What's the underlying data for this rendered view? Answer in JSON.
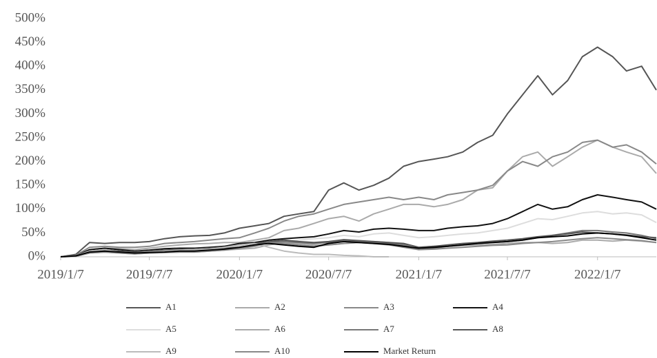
{
  "chart_data": {
    "type": "line",
    "x": [
      "2019/1/7",
      "2019/2/7",
      "2019/3/7",
      "2019/4/7",
      "2019/5/7",
      "2019/6/7",
      "2019/7/7",
      "2019/8/7",
      "2019/9/7",
      "2019/10/7",
      "2019/11/7",
      "2019/12/7",
      "2020/1/7",
      "2020/2/7",
      "2020/3/7",
      "2020/4/7",
      "2020/5/7",
      "2020/6/7",
      "2020/7/7",
      "2020/8/7",
      "2020/9/7",
      "2020/10/7",
      "2020/11/7",
      "2020/12/7",
      "2021/1/7",
      "2021/2/7",
      "2021/3/7",
      "2021/4/7",
      "2021/5/7",
      "2021/6/7",
      "2021/7/7",
      "2021/8/7",
      "2021/9/7",
      "2021/10/7",
      "2021/11/7",
      "2021/12/7",
      "2022/1/7",
      "2022/2/7",
      "2022/3/7",
      "2022/4/7",
      "2022/5/7"
    ],
    "xlim": [
      "2019/1/7",
      "2022/5/7"
    ],
    "xticks": [
      "2019/1/7",
      "2019/7/7",
      "2020/1/7",
      "2020/7/7",
      "2021/1/7",
      "2021/7/7",
      "2022/1/7"
    ],
    "ylim": [
      0,
      500
    ],
    "yticks": [
      {
        "value": 0,
        "label": "0%"
      },
      {
        "value": 50,
        "label": "50%"
      },
      {
        "value": 100,
        "label": "100%"
      },
      {
        "value": 150,
        "label": "150%"
      },
      {
        "value": 200,
        "label": "200%"
      },
      {
        "value": 250,
        "label": "250%"
      },
      {
        "value": 300,
        "label": "300%"
      },
      {
        "value": 350,
        "label": "350%"
      },
      {
        "value": 400,
        "label": "400%"
      },
      {
        "value": 450,
        "label": "450%"
      },
      {
        "value": 500,
        "label": "500%"
      }
    ],
    "series": [
      {
        "name": "A1",
        "color": "#555555",
        "values": [
          0,
          5,
          30,
          28,
          30,
          30,
          32,
          38,
          42,
          44,
          45,
          50,
          60,
          65,
          70,
          85,
          90,
          95,
          140,
          155,
          140,
          150,
          165,
          190,
          200,
          205,
          210,
          220,
          240,
          255,
          300,
          340,
          380,
          340,
          370,
          420,
          440,
          420,
          390,
          400,
          350
        ]
      },
      {
        "name": "A2",
        "color": "#aaaaaa",
        "values": [
          0,
          3,
          15,
          18,
          17,
          15,
          18,
          22,
          25,
          27,
          28,
          30,
          30,
          35,
          40,
          55,
          60,
          70,
          80,
          85,
          75,
          90,
          100,
          110,
          110,
          105,
          110,
          120,
          140,
          145,
          180,
          210,
          220,
          190,
          210,
          230,
          245,
          230,
          220,
          210,
          175
        ]
      },
      {
        "name": "A3",
        "color": "#888888",
        "values": [
          0,
          3,
          20,
          22,
          20,
          20,
          22,
          28,
          30,
          32,
          35,
          38,
          40,
          50,
          60,
          75,
          85,
          90,
          100,
          110,
          115,
          120,
          125,
          120,
          125,
          120,
          130,
          135,
          140,
          150,
          180,
          200,
          190,
          210,
          220,
          240,
          245,
          230,
          235,
          220,
          195
        ]
      },
      {
        "name": "A4",
        "color": "#111111",
        "values": [
          0,
          2,
          15,
          18,
          15,
          12,
          14,
          17,
          18,
          18,
          20,
          22,
          28,
          30,
          35,
          38,
          40,
          42,
          48,
          55,
          52,
          58,
          60,
          58,
          55,
          55,
          60,
          63,
          65,
          70,
          80,
          95,
          110,
          100,
          105,
          120,
          130,
          125,
          120,
          115,
          100
        ]
      },
      {
        "name": "A5",
        "color": "#dddddd",
        "values": [
          0,
          2,
          12,
          15,
          12,
          10,
          12,
          14,
          15,
          16,
          18,
          20,
          22,
          25,
          30,
          32,
          35,
          38,
          40,
          45,
          42,
          48,
          50,
          45,
          40,
          42,
          45,
          48,
          50,
          55,
          60,
          70,
          80,
          78,
          85,
          92,
          95,
          90,
          92,
          88,
          72
        ]
      },
      {
        "name": "A6",
        "color": "#aaaaaa",
        "values": [
          0,
          1,
          8,
          10,
          8,
          6,
          8,
          9,
          10,
          10,
          12,
          14,
          16,
          18,
          25,
          30,
          28,
          25,
          25,
          28,
          30,
          32,
          30,
          25,
          20,
          22,
          22,
          24,
          25,
          26,
          28,
          30,
          30,
          28,
          30,
          35,
          35,
          33,
          35,
          33,
          30
        ]
      },
      {
        "name": "A7",
        "color": "#777777",
        "values": [
          0,
          2,
          10,
          12,
          10,
          8,
          10,
          12,
          13,
          14,
          15,
          18,
          20,
          25,
          30,
          32,
          30,
          28,
          30,
          35,
          32,
          30,
          28,
          25,
          15,
          18,
          22,
          25,
          28,
          30,
          32,
          35,
          40,
          45,
          50,
          55,
          55,
          52,
          50,
          45,
          38
        ]
      },
      {
        "name": "A8",
        "color": "#555555",
        "values": [
          0,
          2,
          12,
          15,
          12,
          10,
          12,
          14,
          15,
          16,
          18,
          20,
          25,
          28,
          32,
          35,
          32,
          30,
          32,
          36,
          34,
          32,
          30,
          28,
          20,
          22,
          25,
          28,
          30,
          33,
          35,
          38,
          42,
          45,
          48,
          52,
          50,
          48,
          46,
          42,
          40
        ]
      },
      {
        "name": "A9",
        "color": "#bbbbbb",
        "values": [
          0,
          2,
          12,
          15,
          10,
          8,
          10,
          12,
          14,
          15,
          16,
          20,
          25,
          28,
          20,
          12,
          8,
          5,
          5,
          3,
          2,
          0,
          0,
          null,
          null,
          null,
          null,
          null,
          null,
          null,
          null,
          null,
          null,
          null,
          null,
          null,
          null,
          null,
          null,
          null,
          null
        ]
      },
      {
        "name": "A10",
        "color": "#888888",
        "values": [
          0,
          1,
          8,
          10,
          8,
          6,
          8,
          9,
          10,
          10,
          12,
          14,
          18,
          22,
          30,
          28,
          25,
          22,
          25,
          28,
          30,
          28,
          25,
          20,
          15,
          16,
          18,
          20,
          22,
          24,
          25,
          28,
          30,
          32,
          35,
          38,
          40,
          38,
          36,
          34,
          30
        ]
      },
      {
        "name": "Market Return",
        "color": "#000000",
        "values": [
          0,
          2,
          10,
          12,
          10,
          8,
          9,
          10,
          12,
          12,
          14,
          16,
          20,
          25,
          28,
          25,
          22,
          20,
          28,
          32,
          30,
          28,
          26,
          22,
          18,
          20,
          22,
          25,
          28,
          30,
          32,
          35,
          40,
          42,
          44,
          48,
          50,
          48,
          45,
          40,
          35
        ]
      }
    ]
  }
}
